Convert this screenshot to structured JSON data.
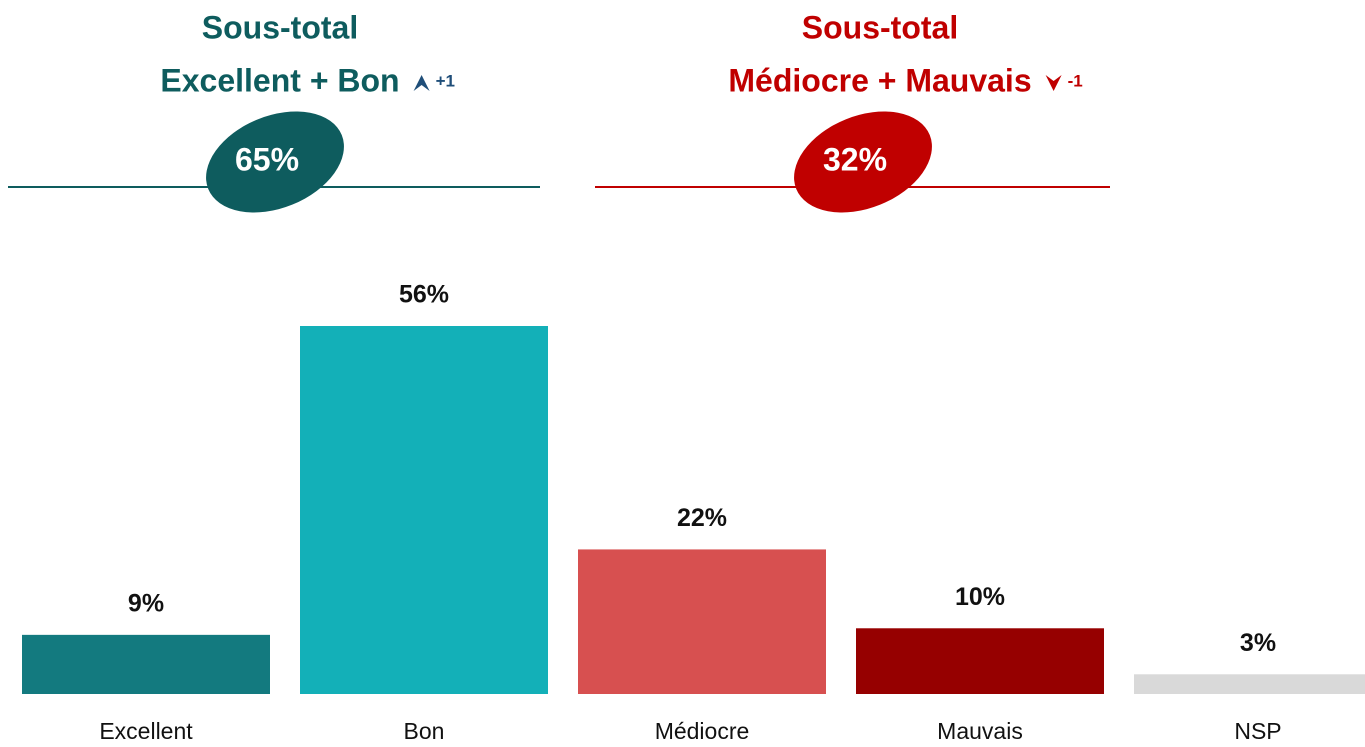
{
  "chart_data": {
    "type": "bar",
    "categories": [
      "Excellent",
      "Bon",
      "Médiocre",
      "Mauvais",
      "NSP"
    ],
    "values": [
      9,
      56,
      22,
      10,
      3
    ],
    "value_labels": [
      "9%",
      "56%",
      "22%",
      "10%",
      "3%"
    ],
    "colors": [
      "#137a7f",
      "#13b0b8",
      "#d75050",
      "#960000",
      "#d9d9d9"
    ],
    "subtotals": [
      {
        "title": [
          "Sous-total",
          "Excellent + Bon"
        ],
        "value": 65,
        "value_label": "65%",
        "change": 1,
        "change_label": "+1",
        "color": "#0e5c5e",
        "change_color": "#1f4e79"
      },
      {
        "title": [
          "Sous-total",
          "Médiocre + Mauvais"
        ],
        "value": 32,
        "value_label": "32%",
        "change": -1,
        "change_label": "-1",
        "color": "#c00000",
        "change_color": "#c00000"
      }
    ]
  }
}
